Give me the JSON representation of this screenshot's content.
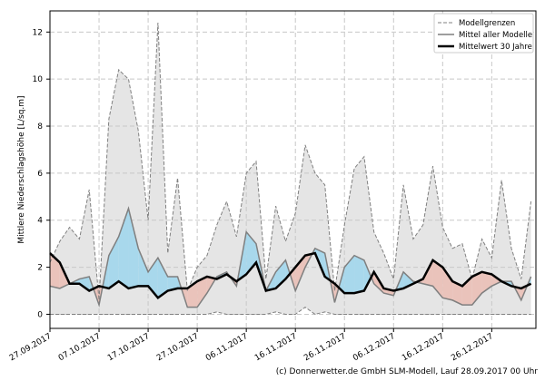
{
  "chart_data": {
    "type": "area",
    "title": "",
    "xlabel": "",
    "ylabel": "Mittlere Niederschlagshöhe [L/sq.m]",
    "ylim": [
      -0.6,
      12.9
    ],
    "xlim": [
      "2017-09-27",
      "2018-01-04"
    ],
    "grid": true,
    "legend_placement": "top-right",
    "yticks": [
      0,
      2,
      4,
      6,
      8,
      10,
      12
    ],
    "xticks": [
      "27.09.2017",
      "07.10.2017",
      "17.10.2017",
      "27.10.2017",
      "06.11.2017",
      "16.11.2017",
      "26.11.2017",
      "06.12.2017",
      "16.12.2017",
      "26.12.2017"
    ],
    "xtick_dates": [
      "2017-09-27",
      "2017-10-07",
      "2017-10-17",
      "2017-10-27",
      "2017-11-06",
      "2017-11-16",
      "2017-11-26",
      "2017-12-06",
      "2017-12-16",
      "2017-12-26"
    ],
    "x": [
      "2017-09-27",
      "2017-09-29",
      "2017-10-01",
      "2017-10-03",
      "2017-10-05",
      "2017-10-07",
      "2017-10-09",
      "2017-10-11",
      "2017-10-13",
      "2017-10-15",
      "2017-10-17",
      "2017-10-19",
      "2017-10-21",
      "2017-10-23",
      "2017-10-25",
      "2017-10-27",
      "2017-10-29",
      "2017-10-31",
      "2017-11-02",
      "2017-11-04",
      "2017-11-06",
      "2017-11-08",
      "2017-11-10",
      "2017-11-12",
      "2017-11-14",
      "2017-11-16",
      "2017-11-18",
      "2017-11-20",
      "2017-11-22",
      "2017-11-24",
      "2017-11-26",
      "2017-11-28",
      "2017-11-30",
      "2017-12-02",
      "2017-12-04",
      "2017-12-06",
      "2017-12-08",
      "2017-12-10",
      "2017-12-12",
      "2017-12-14",
      "2017-12-16",
      "2017-12-18",
      "2017-12-20",
      "2017-12-22",
      "2017-12-24",
      "2017-12-26",
      "2017-12-28",
      "2017-12-30",
      "2018-01-01",
      "2018-01-03"
    ],
    "series": [
      {
        "name": "Modellgrenzen",
        "role": "upper",
        "values": [
          2.2,
          3.1,
          3.7,
          3.2,
          5.3,
          0.6,
          8.3,
          10.4,
          10.0,
          7.8,
          4.0,
          12.4,
          2.6,
          5.8,
          1.0,
          2.0,
          2.5,
          3.8,
          4.8,
          3.3,
          6.0,
          6.5,
          1.5,
          4.6,
          3.1,
          4.3,
          7.2,
          6.0,
          5.5,
          1.0,
          3.8,
          6.2,
          6.7,
          3.5,
          2.6,
          1.5,
          5.5,
          3.2,
          3.8,
          6.3,
          3.7,
          2.8,
          3.0,
          1.5,
          3.2,
          2.4,
          5.7,
          2.8,
          1.5,
          4.8
        ]
      },
      {
        "role": "lower",
        "values": [
          0,
          0,
          0,
          0,
          0,
          0,
          0,
          0,
          0,
          0,
          0,
          0,
          0,
          0,
          0,
          0,
          0,
          0.1,
          0,
          0,
          0,
          0,
          0,
          0.1,
          0,
          0,
          0.3,
          0,
          0.1,
          0,
          0,
          0,
          0,
          0,
          0,
          0,
          0,
          0,
          0,
          0,
          0,
          0,
          0,
          0,
          0,
          0,
          0,
          0,
          0,
          0
        ]
      },
      {
        "name": "Mittel aller Modelle",
        "values": [
          1.2,
          1.1,
          1.3,
          1.5,
          1.6,
          0.4,
          2.5,
          3.3,
          4.5,
          2.8,
          1.8,
          2.4,
          1.6,
          1.6,
          0.3,
          0.3,
          0.9,
          1.6,
          1.8,
          1.2,
          3.5,
          3.0,
          1.0,
          1.8,
          2.3,
          1.0,
          2.0,
          2.8,
          2.6,
          0.5,
          2.0,
          2.5,
          2.3,
          1.3,
          0.9,
          0.8,
          1.8,
          1.4,
          1.3,
          1.2,
          0.7,
          0.6,
          0.4,
          0.4,
          0.9,
          1.2,
          1.4,
          1.4,
          0.6,
          1.6
        ]
      },
      {
        "name": "Mittelwert 30 Jahre",
        "values": [
          2.6,
          2.2,
          1.3,
          1.3,
          1.0,
          1.2,
          1.1,
          1.4,
          1.1,
          1.2,
          1.2,
          0.7,
          1.0,
          1.1,
          1.1,
          1.4,
          1.6,
          1.5,
          1.7,
          1.4,
          1.7,
          2.2,
          1.0,
          1.1,
          1.5,
          2.0,
          2.5,
          2.6,
          1.6,
          1.3,
          0.9,
          0.9,
          1.0,
          1.8,
          1.1,
          1.0,
          1.1,
          1.3,
          1.5,
          2.3,
          2.0,
          1.4,
          1.2,
          1.6,
          1.8,
          1.7,
          1.4,
          1.2,
          1.1,
          1.3
        ]
      }
    ],
    "colors": {
      "envelope_fill": "#e5e5e5",
      "envelope_line": "#808080",
      "model_mean": "#7f7f7f",
      "climate_mean": "#000000",
      "above_fill": "#a8d8ec",
      "below_fill": "#eac3bb"
    },
    "legend": [
      "Modellgrenzen",
      "Mittel aller Modelle",
      "Mittelwert 30 Jahre"
    ]
  },
  "footer": "(c) Donnerwetter.de GmbH SLM-Modell, Lauf 28.09.2017 00 Uhr"
}
